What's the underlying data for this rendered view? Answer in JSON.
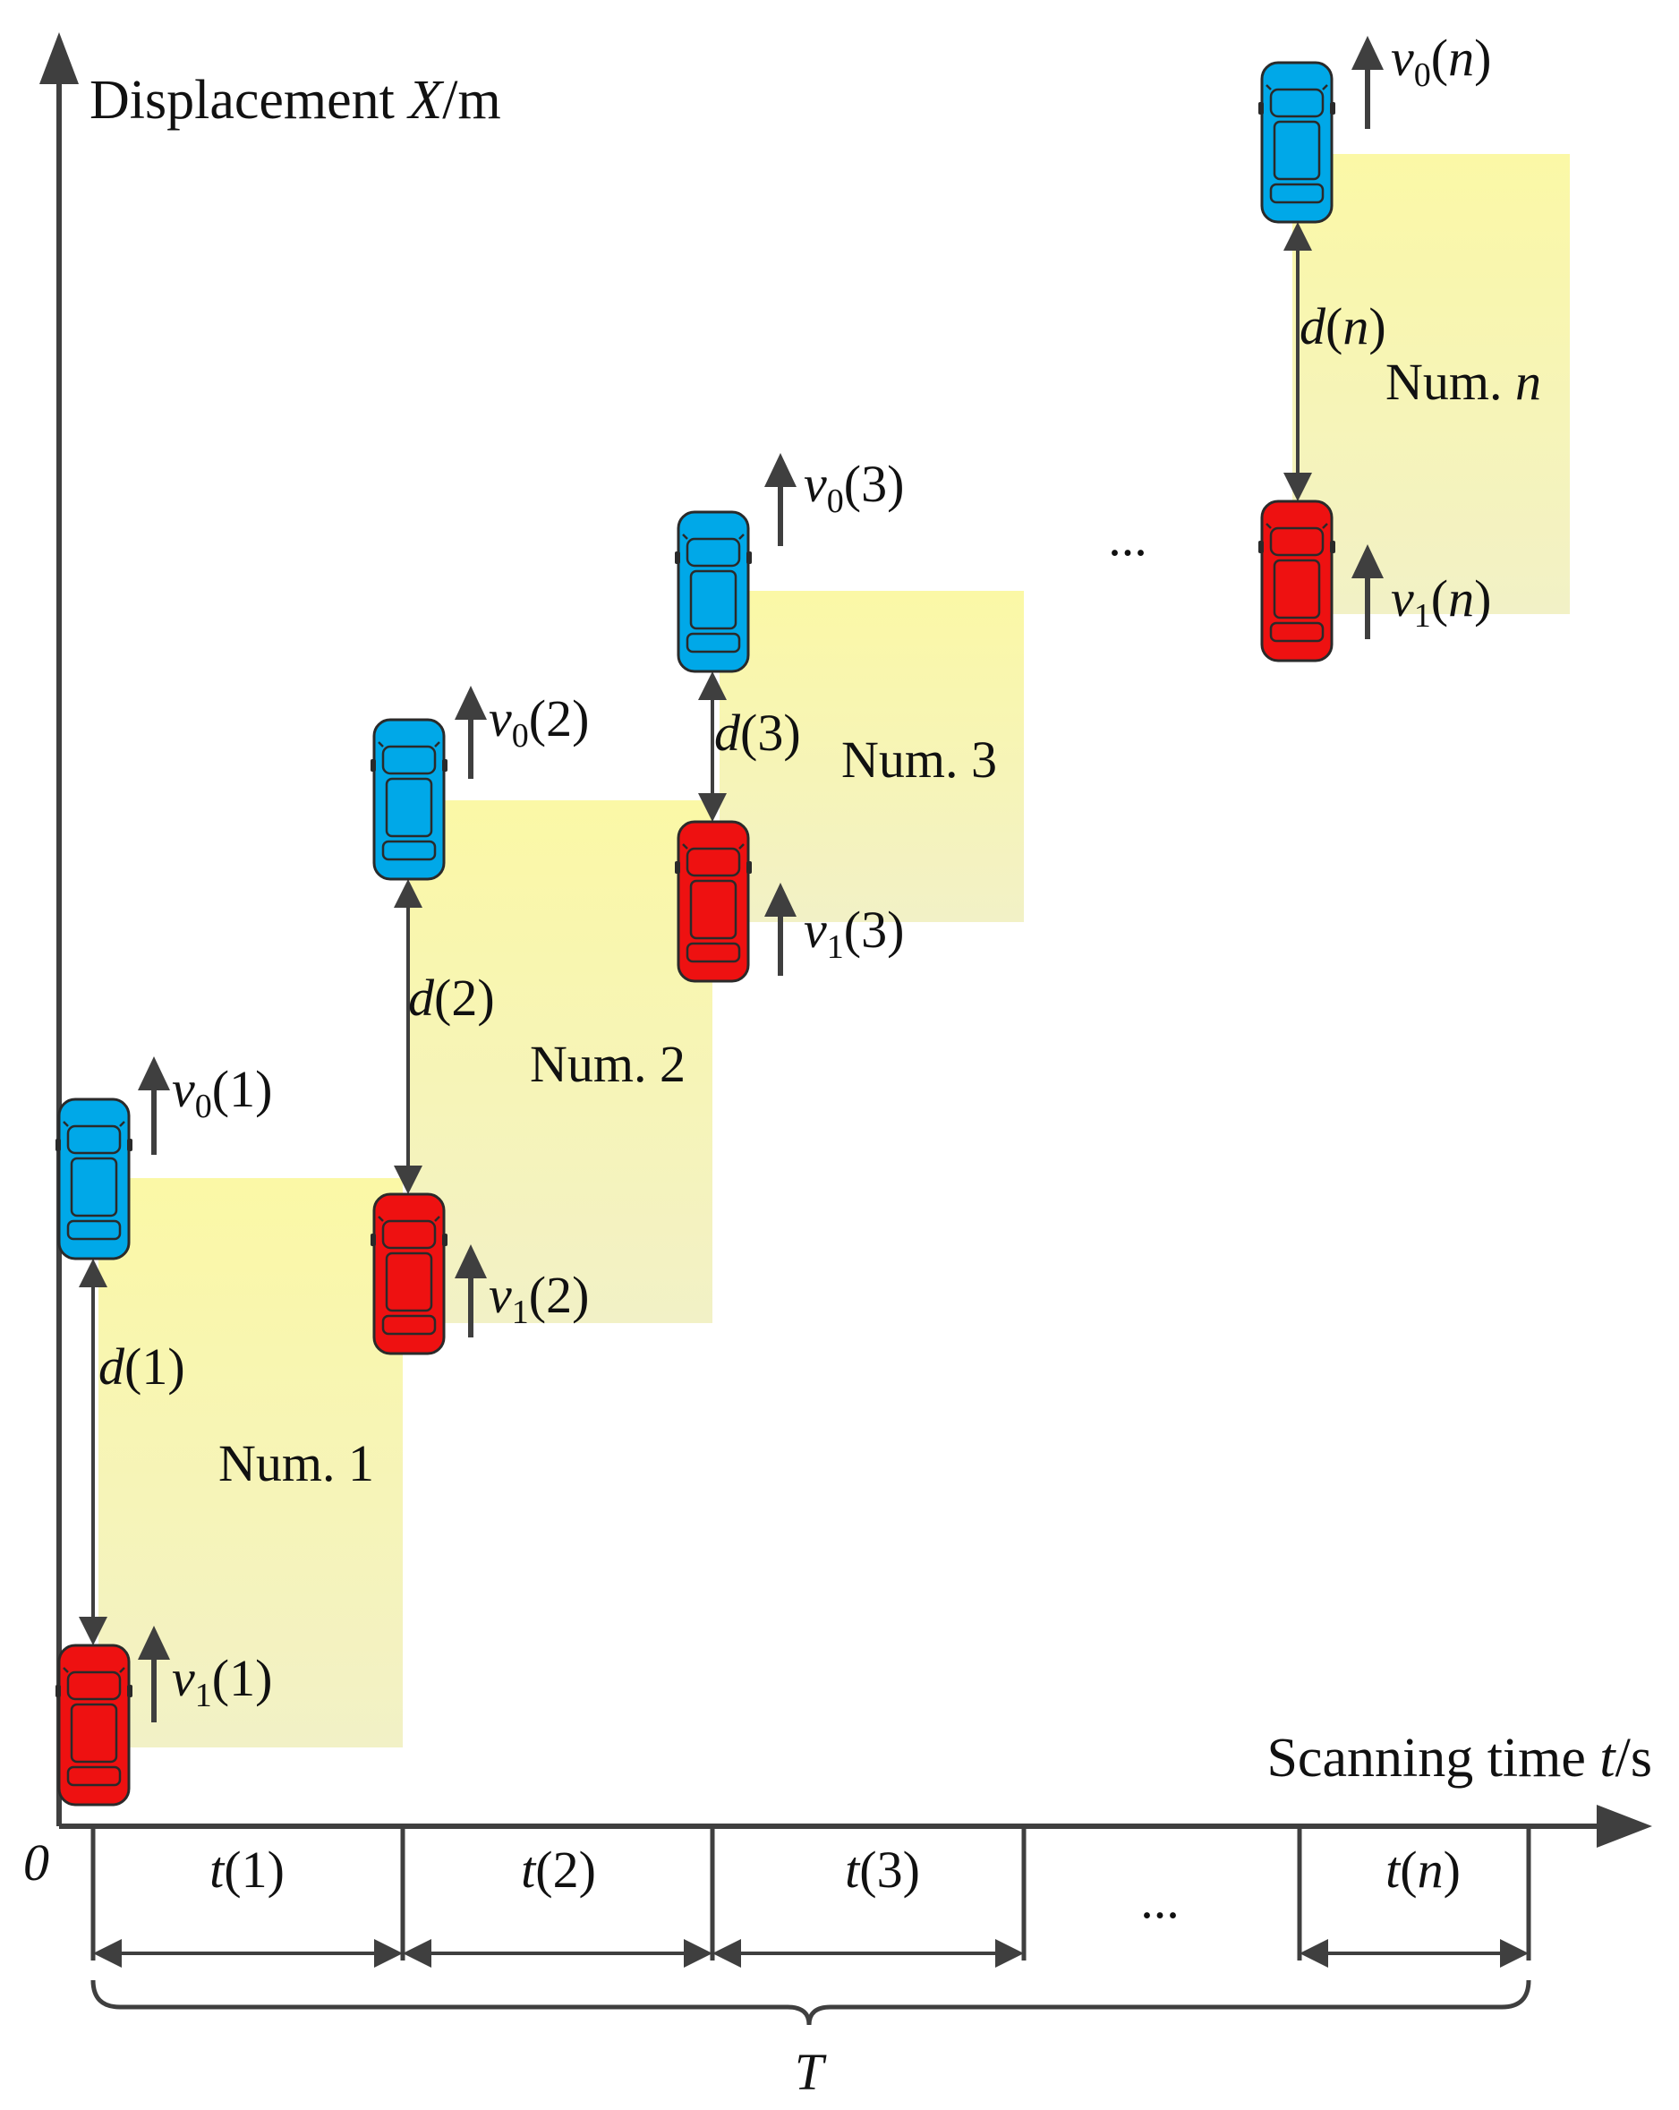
{
  "axes": {
    "y_label_prefix": "Displacement ",
    "y_label_var": "X",
    "y_label_unit": "/m",
    "x_label_prefix": "Scanning time ",
    "x_label_var": "t",
    "x_label_unit": "/s",
    "origin": "0"
  },
  "colors": {
    "axis": "#3f3f3f",
    "box_fill_top": "#fbf8a6",
    "box_fill_bottom": "#f2f1c6",
    "car_front": "#00a8e8",
    "car_rear": "#ee1111",
    "car_outline": "#2a2a2a"
  },
  "groups": [
    {
      "id": "1",
      "region": "Num. 1",
      "distance": "d(1)",
      "v0": "v0(1)",
      "v1": "v1(1)",
      "interval": "t(1)"
    },
    {
      "id": "2",
      "region": "Num. 2",
      "distance": "d(2)",
      "v0": "v0(2)",
      "v1": "v1(2)",
      "interval": "t(2)"
    },
    {
      "id": "3",
      "region": "Num. 3",
      "distance": "d(3)",
      "v0": "v0(3)",
      "v1": "v1(3)",
      "interval": "t(3)"
    },
    {
      "id": "n",
      "region": "Num. n",
      "distance": "d(n)",
      "v0": "v0(n)",
      "v1": "v1(n)",
      "interval": "t(n)"
    }
  ],
  "ellipsis_upper": "...",
  "ellipsis_lower": "...",
  "total_period": "T",
  "icons": {
    "front_vehicle": "car-top-view-icon",
    "rear_vehicle": "car-top-view-icon",
    "velocity": "arrow-up-icon"
  }
}
